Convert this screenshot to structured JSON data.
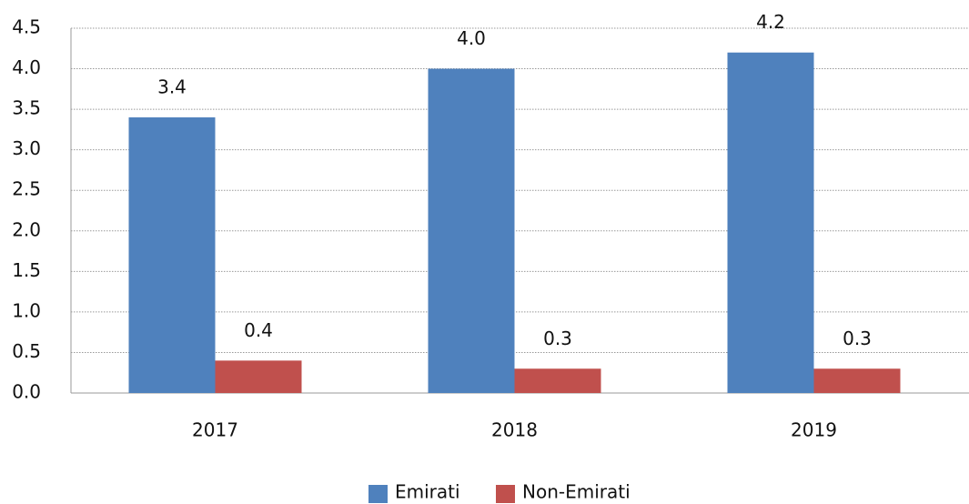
{
  "chart_data": {
    "type": "bar",
    "categories": [
      "2017",
      "2018",
      "2019"
    ],
    "series": [
      {
        "name": "Emirati",
        "color": "#4f81bd",
        "values": [
          3.4,
          4.0,
          4.2
        ],
        "value_labels": [
          "3.4",
          "4.0",
          "4.2"
        ]
      },
      {
        "name": "Non-Emirati",
        "color": "#c0504d",
        "values": [
          0.4,
          0.3,
          0.3
        ],
        "value_labels": [
          "0.4",
          "0.3",
          "0.3"
        ]
      }
    ],
    "ylim": [
      0,
      4.5
    ],
    "yticks": [
      {
        "value": 0,
        "label": "0.0"
      },
      0.5,
      {
        "value": 1,
        "label": "1.0"
      },
      1.5,
      {
        "value": 2,
        "label": "2.0"
      },
      2.5,
      {
        "value": 3,
        "label": "3.0"
      },
      3.5,
      {
        "value": 4,
        "label": "4.0"
      },
      4.5
    ],
    "grid": true,
    "legend": "bottom"
  }
}
